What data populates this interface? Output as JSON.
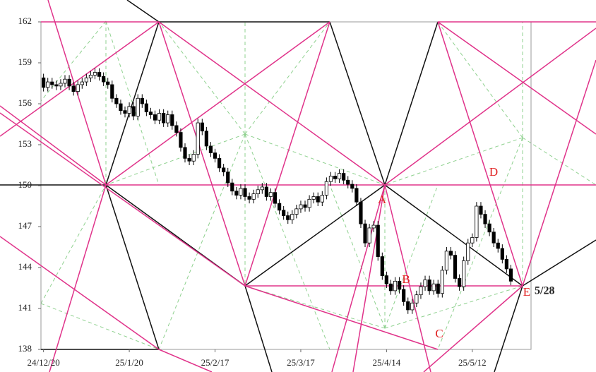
{
  "chart_data": {
    "type": "candlestick",
    "ylim": [
      138,
      162
    ],
    "yticks": [
      138,
      141,
      144,
      147,
      150,
      153,
      156,
      159,
      162
    ],
    "xlim": [
      -0.6,
      113.7
    ],
    "xticks": [
      {
        "value": 0,
        "label": "24/12/20"
      },
      {
        "value": 20,
        "label": "25/1/20"
      },
      {
        "value": 40,
        "label": "25/2/17"
      },
      {
        "value": 60,
        "label": "25/3/17"
      },
      {
        "value": 80,
        "label": "25/4/14"
      },
      {
        "value": 100,
        "label": "25/5/12"
      }
    ],
    "up_color": "#ffffff",
    "down_color": "#000000",
    "open": [
      157.9,
      157.2,
      157.6,
      157.4,
      157.3,
      157.5,
      157.8,
      157.3,
      156.9,
      157.4,
      157.6,
      157.9,
      158.1,
      158.3,
      158.0,
      157.6,
      157.4,
      156.4,
      156.0,
      155.5,
      155.3,
      155.8,
      155.1,
      156.4,
      156.0,
      155.4,
      155.2,
      154.8,
      155.3,
      154.6,
      155.2,
      154.4,
      153.9,
      152.8,
      152.0,
      151.8,
      152.3,
      154.6,
      154.0,
      152.9,
      152.4,
      152.0,
      151.3,
      151.0,
      150.2,
      149.6,
      149.3,
      149.8,
      149.2,
      149.0,
      149.4,
      149.7,
      149.9,
      149.2,
      149.5,
      148.7,
      148.2,
      147.8,
      147.5,
      147.9,
      148.3,
      148.6,
      148.4,
      149.0,
      149.2,
      148.8,
      149.3,
      150.3,
      150.7,
      150.5,
      150.9,
      150.4,
      150.1,
      149.8,
      148.8,
      147.2,
      145.8,
      146.9,
      147.1,
      144.8,
      143.4,
      142.8,
      142.3,
      143.0,
      142.4,
      141.5,
      140.9,
      141.4,
      142.0,
      142.6,
      143.1,
      142.3,
      142.8,
      142.1,
      143.8,
      145.2,
      144.9,
      143.2,
      142.6,
      144.5,
      145.8,
      146.2,
      148.5,
      147.9,
      147.2,
      146.6,
      145.8,
      145.4,
      144.6,
      143.9
    ],
    "high": [
      158.2,
      157.9,
      157.9,
      157.7,
      157.8,
      158.1,
      158.1,
      157.6,
      157.7,
      157.9,
      158.2,
      158.4,
      158.6,
      158.6,
      158.3,
      157.9,
      157.7,
      156.7,
      156.3,
      155.8,
      156.1,
      156.1,
      156.7,
      156.7,
      156.3,
      155.7,
      155.5,
      155.6,
      155.6,
      155.5,
      155.5,
      154.7,
      154.2,
      153.1,
      152.3,
      152.6,
      154.9,
      154.9,
      154.3,
      153.2,
      152.7,
      152.3,
      151.6,
      151.3,
      150.5,
      149.9,
      150.1,
      150.1,
      149.5,
      149.7,
      150.0,
      150.2,
      150.2,
      149.8,
      149.8,
      149.0,
      148.5,
      148.1,
      148.2,
      148.6,
      148.9,
      148.9,
      149.3,
      149.5,
      149.5,
      149.6,
      150.6,
      151.0,
      151.0,
      151.2,
      151.2,
      150.7,
      150.4,
      150.1,
      149.1,
      147.5,
      147.2,
      147.4,
      147.4,
      145.1,
      143.7,
      143.1,
      143.3,
      143.3,
      142.7,
      141.8,
      141.7,
      142.3,
      142.9,
      143.4,
      143.4,
      143.1,
      143.1,
      144.1,
      145.5,
      145.5,
      145.2,
      143.5,
      144.8,
      146.1,
      146.5,
      148.8,
      148.8,
      148.2,
      147.5,
      146.9,
      146.1,
      145.7,
      144.9,
      144.2
    ],
    "low": [
      156.9,
      156.9,
      157.1,
      157.0,
      157.0,
      157.2,
      157.0,
      156.6,
      156.6,
      157.1,
      157.3,
      157.6,
      157.8,
      157.7,
      157.3,
      157.1,
      156.1,
      155.7,
      155.2,
      155.0,
      155.0,
      154.8,
      154.8,
      155.7,
      155.1,
      154.9,
      154.5,
      154.5,
      154.3,
      154.3,
      154.1,
      153.6,
      152.5,
      151.7,
      151.5,
      151.5,
      152.0,
      153.7,
      152.6,
      152.1,
      151.7,
      151.0,
      150.7,
      149.9,
      149.3,
      149.0,
      149.0,
      148.9,
      148.7,
      148.7,
      149.1,
      149.4,
      148.9,
      148.9,
      148.4,
      147.9,
      147.5,
      147.2,
      147.2,
      147.6,
      148.0,
      148.1,
      148.1,
      148.7,
      148.5,
      148.5,
      149.0,
      150.0,
      150.2,
      150.2,
      150.1,
      149.8,
      149.5,
      148.5,
      146.9,
      145.5,
      145.5,
      146.6,
      144.5,
      143.1,
      142.5,
      142.0,
      142.0,
      142.1,
      141.2,
      140.6,
      140.6,
      141.1,
      141.7,
      142.3,
      142.0,
      142.0,
      141.8,
      141.8,
      143.5,
      144.6,
      142.9,
      142.3,
      142.3,
      144.2,
      145.5,
      145.9,
      147.6,
      146.9,
      146.3,
      145.5,
      145.1,
      144.3,
      143.6,
      142.7
    ],
    "close": [
      157.2,
      157.6,
      157.4,
      157.3,
      157.5,
      157.8,
      157.3,
      156.9,
      157.4,
      157.6,
      157.9,
      158.1,
      158.3,
      158.0,
      157.6,
      157.4,
      156.4,
      156.0,
      155.5,
      155.3,
      155.8,
      155.1,
      156.4,
      156.0,
      155.4,
      155.2,
      154.8,
      155.3,
      154.6,
      155.2,
      154.4,
      153.9,
      152.8,
      152.0,
      151.8,
      152.3,
      154.6,
      154.0,
      152.9,
      152.4,
      152.0,
      151.3,
      151.0,
      150.2,
      149.6,
      149.3,
      149.8,
      149.2,
      149.0,
      149.4,
      149.7,
      149.9,
      149.2,
      149.5,
      148.7,
      148.2,
      147.8,
      147.5,
      147.9,
      148.3,
      148.6,
      148.4,
      149.0,
      149.2,
      148.8,
      149.3,
      150.3,
      150.7,
      150.5,
      150.9,
      150.4,
      150.1,
      149.8,
      148.8,
      147.2,
      145.8,
      146.9,
      147.1,
      144.8,
      143.4,
      142.8,
      142.3,
      143.0,
      142.4,
      141.5,
      140.9,
      141.4,
      142.0,
      142.6,
      143.1,
      142.3,
      142.8,
      142.1,
      143.8,
      145.2,
      144.9,
      143.2,
      142.6,
      144.5,
      145.8,
      146.2,
      148.5,
      147.9,
      147.2,
      146.6,
      145.8,
      145.4,
      144.6,
      143.9,
      143.0
    ],
    "annotations": [
      "A",
      "B",
      "C",
      "D",
      "E",
      "5/28"
    ]
  }
}
